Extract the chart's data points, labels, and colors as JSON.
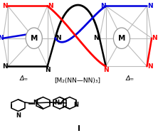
{
  "background_color": "#ffffff",
  "label_formula": "[M₂(NN—NN)₃]",
  "label_compound": "I",
  "delta_label": "Δₘ",
  "strand_colors": [
    "#ff0000",
    "#0000dd",
    "#000000"
  ],
  "metal_label": "M",
  "light_gray": "#bbbbbb",
  "metal_circle_edge": "#999999"
}
